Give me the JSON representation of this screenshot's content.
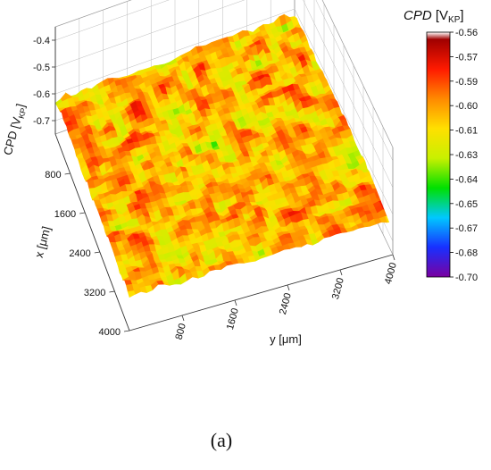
{
  "figure": {
    "caption": "(a)"
  },
  "chart_data": {
    "type": "surface3d",
    "title": "",
    "xlabel": "x [μm]",
    "ylabel": "y [μm]",
    "zlabel": "CPD [V",
    "zlabel_sub": "KP",
    "zlabel_suffix": "]",
    "x_ticks": [
      "800",
      "1600",
      "2400",
      "3200",
      "4000"
    ],
    "y_ticks": [
      "800",
      "1600",
      "2400",
      "3200",
      "4000"
    ],
    "z_ticks": [
      "-0.4",
      "-0.5",
      "-0.6",
      "-0.7"
    ],
    "xlim": [
      0,
      4000
    ],
    "ylim": [
      0,
      4000
    ],
    "zlim": [
      -0.75,
      -0.35
    ],
    "colorbar": {
      "title_italic": "CPD",
      "title_unit": "[V",
      "title_sub": "KP",
      "title_suffix": "]",
      "ticks": [
        "-0.56",
        "-0.57",
        "-0.59",
        "-0.60",
        "-0.61",
        "-0.63",
        "-0.64",
        "-0.65",
        "-0.67",
        "-0.68",
        "-0.70"
      ],
      "range": [
        -0.7,
        -0.56
      ],
      "colors": [
        "#7a00a0",
        "#1830ff",
        "#00c8ff",
        "#00e000",
        "#c8f000",
        "#ffe000",
        "#ff8a00",
        "#ff1a00",
        "#a00000",
        "#ffffff"
      ]
    },
    "surface_value_range": [
      -0.66,
      -0.57
    ],
    "surface_mean": -0.605,
    "grid": true
  }
}
